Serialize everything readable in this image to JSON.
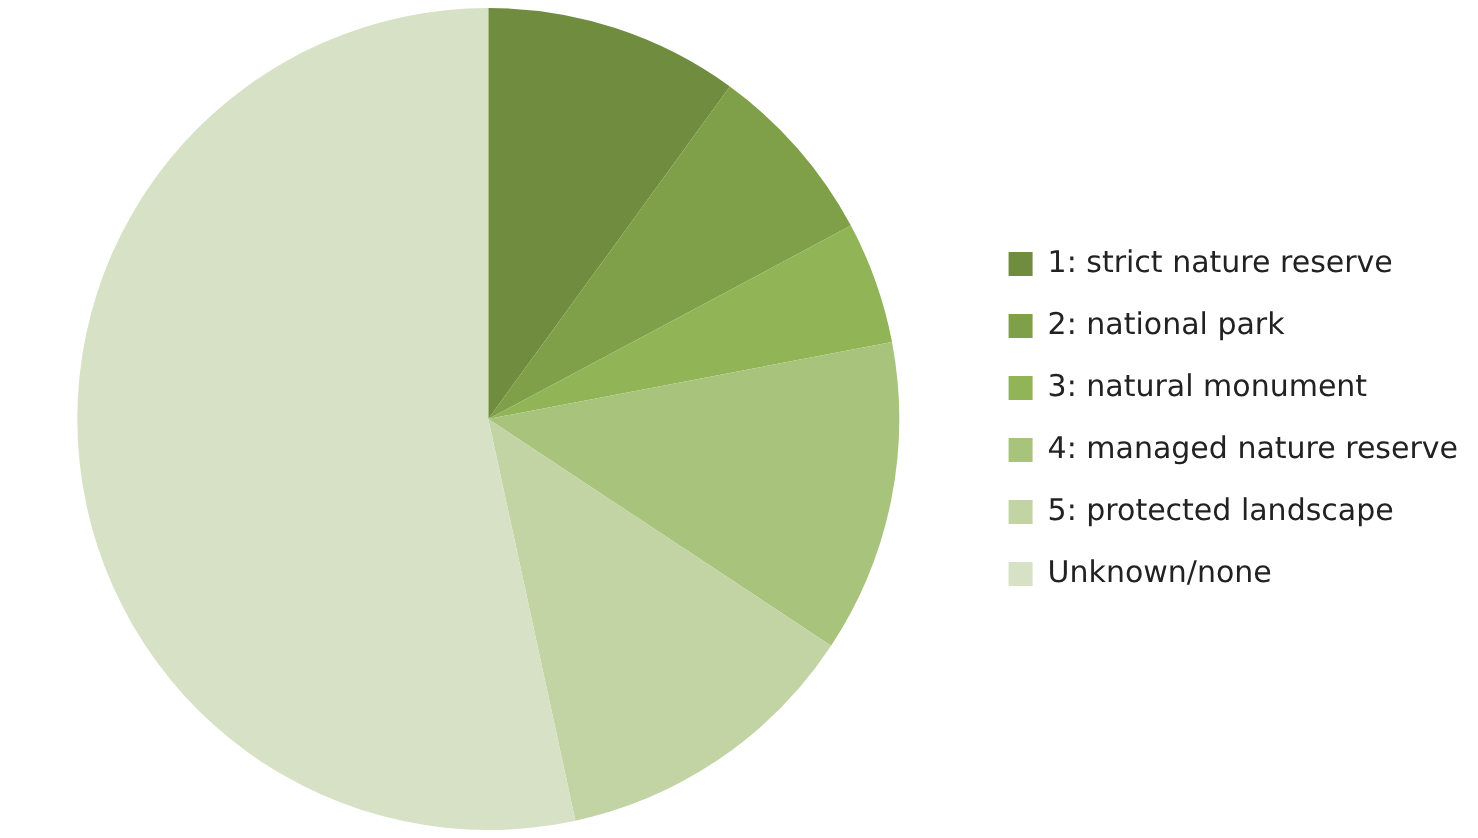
{
  "chart_data": {
    "type": "pie",
    "categories": [
      "1: strict nature reserve",
      "2: national park",
      "3: natural monument",
      "4: managed nature reserve",
      "5: protected landscape",
      "Unknown/none"
    ],
    "values": [
      10,
      7.2,
      4.8,
      12.3,
      12.3,
      53.4
    ],
    "colors": [
      "#6f8c3f",
      "#7fa049",
      "#91b457",
      "#a8c47c",
      "#c2d4a4",
      "#d7e1c5"
    ],
    "legend": "right"
  }
}
